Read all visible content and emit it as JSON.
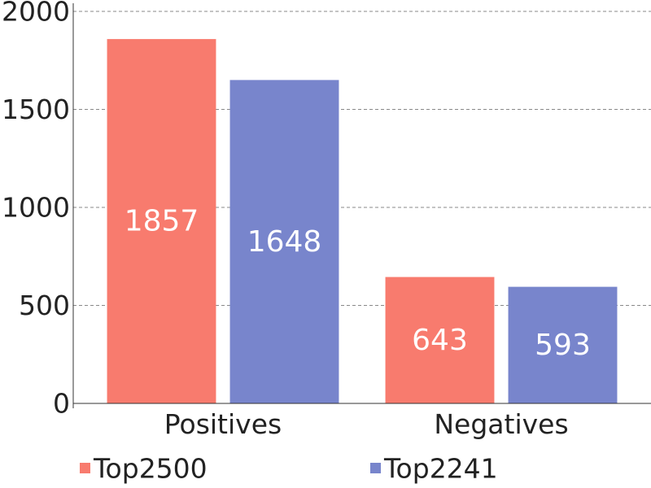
{
  "chart_data": {
    "type": "bar",
    "categories": [
      "Positives",
      "Negatives"
    ],
    "series": [
      {
        "name": "Top2500",
        "values": [
          1857,
          643
        ],
        "color": "#f87b6e"
      },
      {
        "name": "Top2241",
        "values": [
          1648,
          593
        ],
        "color": "#7885cc"
      }
    ],
    "title": "",
    "xlabel": "",
    "ylabel": "",
    "ylim": [
      0,
      2000
    ],
    "yticks": [
      0,
      500,
      1000,
      1500,
      2000
    ],
    "ytick_labels": [
      "0",
      "500",
      "1000",
      "1500",
      "2000"
    ],
    "grid": "horizontal-dashed",
    "legend_position": "bottom",
    "data_labels": true
  }
}
